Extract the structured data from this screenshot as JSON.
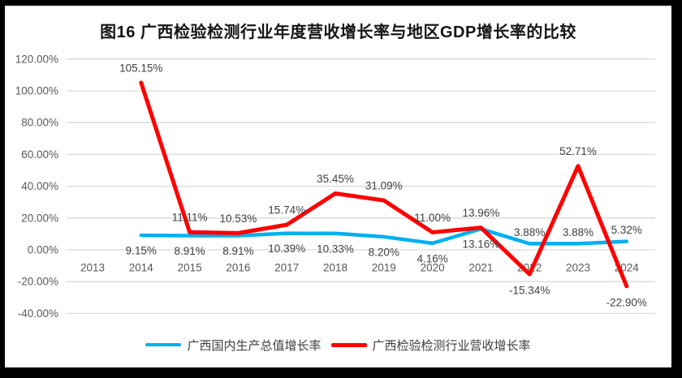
{
  "chart_data": {
    "type": "line",
    "title": "图16 广西检验检测行业年度营收增长率与地区GDP增长率的比较",
    "categories": [
      "2013",
      "2014",
      "2015",
      "2016",
      "2017",
      "2018",
      "2019",
      "2020",
      "2021",
      "2022",
      "2023",
      "2024"
    ],
    "xlabel": "",
    "ylabel": "",
    "ylim": [
      -40,
      120
    ],
    "grid": true,
    "legend_position": "bottom",
    "y_axis": {
      "ticks": [
        {
          "value": 120,
          "label": "120.00%"
        },
        {
          "value": 100,
          "label": "100.00%"
        },
        {
          "value": 80,
          "label": "80.00%"
        },
        {
          "value": 60,
          "label": "60.00%"
        },
        {
          "value": 40,
          "label": "40.00%"
        },
        {
          "value": 20,
          "label": "20.00%"
        },
        {
          "value": 0,
          "label": "0.00%"
        },
        {
          "value": -20,
          "label": "-20.00%"
        },
        {
          "value": -40,
          "label": "-40.00%"
        }
      ]
    },
    "colors": {
      "gridline": "#d9d9d9",
      "axis_text": "#595959",
      "data_label_text": "#404040",
      "frame_border": "#000000",
      "background": "#ffffff"
    },
    "series": [
      {
        "name": "广西国内生产总值增长率",
        "color": "#00B0F0",
        "values": [
          null,
          9.15,
          8.91,
          8.91,
          10.39,
          10.33,
          8.2,
          4.16,
          13.16,
          3.88,
          3.88,
          5.32
        ],
        "point_labels": [
          null,
          "9.15%",
          "8.91%",
          "8.91%",
          "10.39%",
          "10.33%",
          "8.20%",
          "4.16%",
          "13.16%",
          "3.88%",
          "3.88%",
          "5.32%"
        ],
        "label_positions": [
          null,
          "below",
          "below",
          "below",
          "below",
          "below",
          "below",
          "below",
          "below",
          "above",
          "above",
          "above"
        ]
      },
      {
        "name": "广西检验检测行业营收增长率",
        "color": "#FF0000",
        "values": [
          null,
          105.15,
          11.11,
          10.53,
          15.74,
          35.45,
          31.09,
          11.0,
          13.96,
          -15.34,
          52.71,
          -22.9
        ],
        "point_labels": [
          null,
          "105.15%",
          "11.11%",
          "10.53%",
          "15.74%",
          "35.45%",
          "31.09%",
          "11.00%",
          "13.96%",
          "-15.34%",
          "52.71%",
          "-22.90%"
        ],
        "label_positions": [
          null,
          "above",
          "above",
          "above",
          "above",
          "above",
          "above",
          "above",
          "above",
          "below",
          "above",
          "below"
        ]
      }
    ]
  }
}
